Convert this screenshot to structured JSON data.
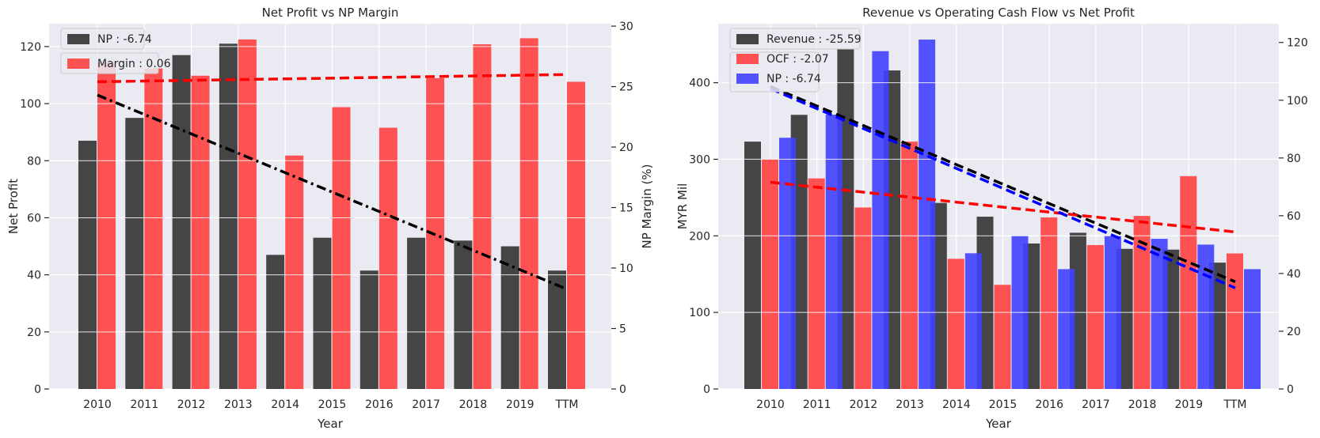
{
  "figure": {
    "background": "#ffffff",
    "plot_background": "#eaeaf2",
    "grid_color": "#ffffff"
  },
  "chart_data": [
    {
      "type": "bar",
      "title": "Net Profit vs NP Margin",
      "xlabel": "Year",
      "ylabel": "Net Profit",
      "y2label": "NP Margin (%)",
      "categories": [
        "2010",
        "2011",
        "2012",
        "2013",
        "2014",
        "2015",
        "2016",
        "2017",
        "2018",
        "2019",
        "TTM"
      ],
      "ylim": [
        0,
        128
      ],
      "y2lim": [
        0,
        30.2
      ],
      "yticks": [
        0,
        20,
        40,
        60,
        80,
        100,
        120
      ],
      "y2ticks": [
        0,
        5,
        10,
        15,
        20,
        25,
        30
      ],
      "grid": true,
      "legend_position": "top-left",
      "series": [
        {
          "name": "NP : -6.74",
          "axis": "left",
          "color": "#333333",
          "values": [
            87,
            95,
            117,
            121,
            47,
            53,
            41.5,
            53,
            52,
            50,
            41.5
          ]
        },
        {
          "name": "Margin : 0.06",
          "axis": "right",
          "color": "#ff4040",
          "values": [
            27,
            26.5,
            25.9,
            28.9,
            19.3,
            23.3,
            21.6,
            25.7,
            28.5,
            29,
            25.4
          ]
        }
      ],
      "trendlines": [
        {
          "axis": "left",
          "color": "#000000",
          "style": "dashdot",
          "from": [
            0,
            103
          ],
          "to": [
            10,
            35
          ]
        },
        {
          "axis": "right",
          "color": "#ff0000",
          "style": "dashed",
          "from": [
            0,
            25.4
          ],
          "to": [
            10,
            26
          ]
        }
      ]
    },
    {
      "type": "bar",
      "title": "Revenue vs Operating Cash Flow vs Net Profit",
      "xlabel": "Year",
      "ylabel": "MYR Mil",
      "categories": [
        "2010",
        "2011",
        "2012",
        "2013",
        "2014",
        "2015",
        "2016",
        "2017",
        "2018",
        "2019",
        "TTM"
      ],
      "ylim": [
        0,
        477
      ],
      "y2lim": [
        0,
        126.5
      ],
      "yticks": [
        0,
        100,
        200,
        300,
        400
      ],
      "y2ticks": [
        0,
        20,
        40,
        60,
        80,
        100,
        120
      ],
      "grid": true,
      "legend_position": "top-left",
      "series": [
        {
          "name": "Revenue : -25.59",
          "axis": "left",
          "color": "#333333",
          "values": [
            323,
            358,
            444,
            416,
            243,
            225,
            190,
            204,
            183,
            182,
            165
          ]
        },
        {
          "name": "OCF : -2.07",
          "axis": "left",
          "color": "#ff4040",
          "values": [
            300,
            275,
            237,
            323,
            170,
            136,
            224,
            188,
            226,
            278,
            177
          ]
        },
        {
          "name": "NP : -6.74",
          "axis": "right",
          "color": "#4040ff",
          "values": [
            87,
            95,
            117,
            121,
            47,
            53,
            41.5,
            53,
            52,
            50,
            41.5
          ]
        }
      ],
      "trendlines": [
        {
          "axis": "left",
          "color": "#000000",
          "style": "dashed",
          "from": [
            0,
            395
          ],
          "to": [
            10,
            140
          ]
        },
        {
          "axis": "left",
          "color": "#ff0000",
          "style": "dashed",
          "from": [
            0,
            270
          ],
          "to": [
            10,
            205
          ]
        },
        {
          "axis": "right",
          "color": "#0000ff",
          "style": "dashed",
          "from": [
            0,
            104
          ],
          "to": [
            10,
            35
          ]
        }
      ]
    }
  ]
}
